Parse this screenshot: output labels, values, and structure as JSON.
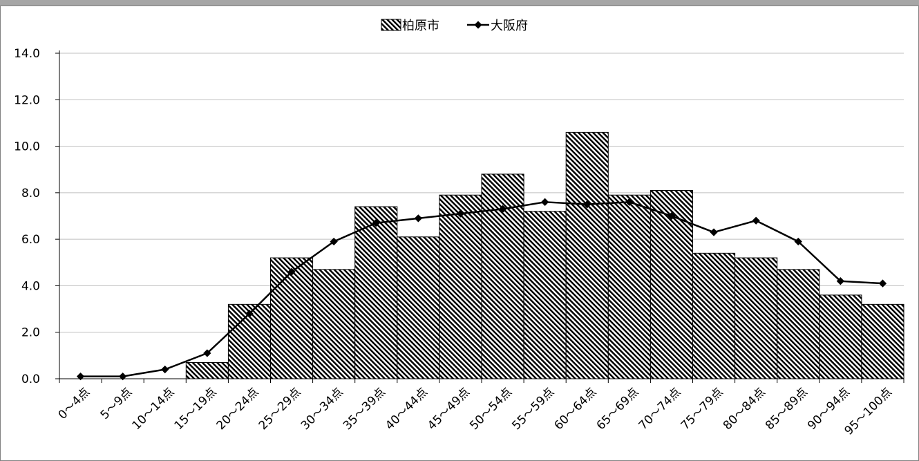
{
  "chart_data": {
    "type": "bar",
    "categories": [
      "0～4点",
      "5～9点",
      "10～14点",
      "15～19点",
      "20～24点",
      "25～29点",
      "30～34点",
      "35～39点",
      "40～44点",
      "45～49点",
      "50～54点",
      "55～59点",
      "60～64点",
      "65～69点",
      "70～74点",
      "75～79点",
      "80～84点",
      "85～89点",
      "90～94点",
      "95～100点"
    ],
    "series": [
      {
        "name": "柏原市",
        "kind": "bar",
        "values": [
          0,
          0,
          0,
          0.7,
          3.2,
          5.2,
          4.7,
          7.4,
          6.1,
          7.9,
          8.8,
          7.2,
          10.6,
          7.9,
          8.1,
          5.4,
          5.2,
          4.7,
          3.6,
          3.2
        ]
      },
      {
        "name": "大阪府",
        "kind": "line",
        "values": [
          0.1,
          0.1,
          0.4,
          1.1,
          2.8,
          4.6,
          5.9,
          6.7,
          6.9,
          7.1,
          7.3,
          7.6,
          7.5,
          7.6,
          7.0,
          6.3,
          6.8,
          5.9,
          4.2,
          4.1
        ]
      }
    ],
    "yticks": [
      "0.0",
      "2.0",
      "4.0",
      "6.0",
      "8.0",
      "10.0",
      "12.0",
      "14.0"
    ],
    "ylim": [
      0,
      14
    ],
    "grid": true,
    "legend_position": "top-center",
    "colors": {
      "bar_stroke": "#000000",
      "bar_hatch": "#000000",
      "line": "#000000",
      "grid": "#bfbfbf"
    }
  }
}
